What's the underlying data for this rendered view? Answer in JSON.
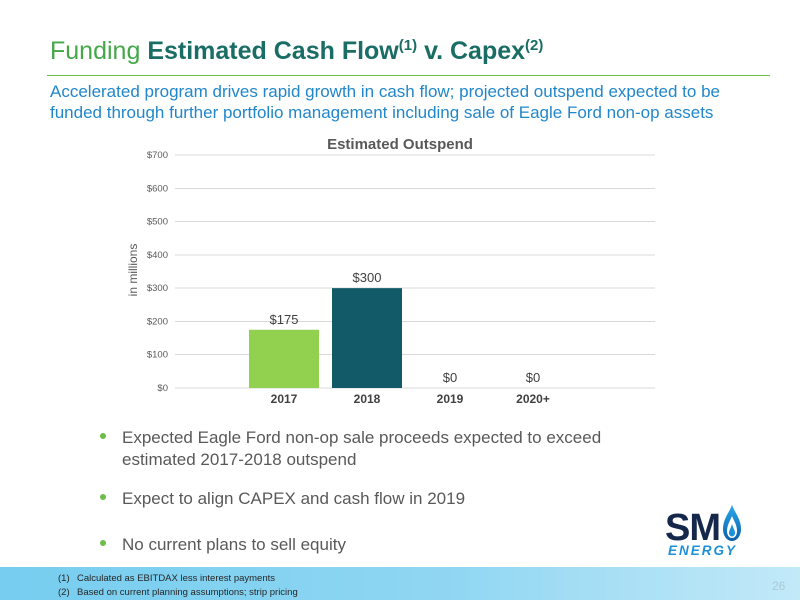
{
  "slide": {
    "title": {
      "prefix": "Funding",
      "main": "Estimated Cash Flow",
      "sup1": "(1)",
      "connector": "v. Capex",
      "sup2": "(2)"
    },
    "subtitle_lines": [
      "Accelerated program drives rapid growth in cash flow; projected outspend expected to be",
      "funded through further portfolio management including sale of Eagle Ford non-op assets"
    ],
    "bullets": [
      {
        "lines": [
          "Expected Eagle Ford non-op sale proceeds expected to exceed",
          "estimated 2017-2018 outspend"
        ]
      },
      {
        "lines": [
          "Expect to align CAPEX and cash flow in 2019"
        ]
      },
      {
        "lines": [
          "No current plans to sell equity"
        ]
      }
    ],
    "logo": {
      "wordmark": "SM",
      "tagline": "ENERGY",
      "icon": "flame-icon"
    },
    "footnotes": [
      {
        "marker": "(1)",
        "text": "Calculated as EBITDAX less interest payments"
      },
      {
        "marker": "(2)",
        "text": "Based on current planning assumptions; strip pricing"
      }
    ],
    "page_number": "26"
  },
  "colors": {
    "title_prefix": "#44a748",
    "title_main": "#1a6d65",
    "subtitle": "#2187c9",
    "accent_green": "#6cbd45",
    "body_text": "#595959",
    "logo_navy": "#15284b",
    "logo_blue": "#1e90d8",
    "footer_band": "#76cdef"
  },
  "chart_data": {
    "type": "bar",
    "title": "Estimated Outspend",
    "xlabel": "",
    "ylabel": "in millions",
    "categories": [
      "2017",
      "2018",
      "2019",
      "2020+"
    ],
    "values": [
      175,
      300,
      0,
      0
    ],
    "value_labels": [
      "$175",
      "$300",
      "$0",
      "$0"
    ],
    "bar_colors": [
      "#92d050",
      "#125a68"
    ],
    "ylim": [
      0,
      700
    ],
    "yticks": [
      0,
      100,
      200,
      300,
      400,
      500,
      600,
      700
    ],
    "ytick_labels": [
      "$0",
      "$100",
      "$200",
      "$300",
      "$400",
      "$500",
      "$600",
      "$700"
    ],
    "grid": true
  }
}
